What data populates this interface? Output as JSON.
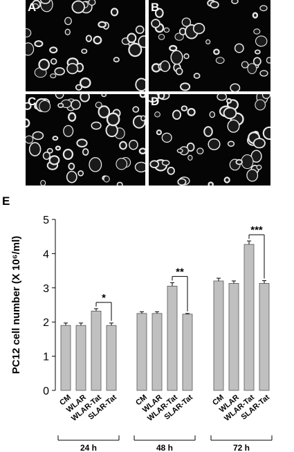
{
  "micrographs": [
    {
      "label": "A"
    },
    {
      "label": "B"
    },
    {
      "label": "C"
    },
    {
      "label": "D"
    }
  ],
  "chart_panel_label": "E",
  "chart_data": {
    "type": "bar",
    "title": "",
    "ylabel": "PC12 cell number (X 10⁶/ml)",
    "ylim": [
      0,
      5
    ],
    "yticks": [
      "0",
      "1",
      "2",
      "3",
      "4",
      "5"
    ],
    "grid": false,
    "bar_color": "#c0c0c0",
    "groups": [
      {
        "label": "24 h",
        "categories": [
          "CM",
          "WLAR",
          "WLAR-Tat",
          "SLAR-Tat"
        ],
        "values": [
          1.9,
          1.9,
          2.32,
          1.9
        ],
        "errors": [
          0.07,
          0.07,
          0.07,
          0.07
        ],
        "significance": {
          "between": [
            2,
            3
          ],
          "label": "*"
        }
      },
      {
        "label": "48 h",
        "categories": [
          "CM",
          "WLAR",
          "WLAR-Tat",
          "SLAR-Tat"
        ],
        "values": [
          2.25,
          2.25,
          3.05,
          2.23
        ],
        "errors": [
          0.05,
          0.05,
          0.1,
          0.02
        ],
        "significance": {
          "between": [
            2,
            3
          ],
          "label": "**"
        }
      },
      {
        "label": "72 h",
        "categories": [
          "CM",
          "WLAR",
          "WLAR-Tat",
          "SLAR-Tat"
        ],
        "values": [
          3.2,
          3.13,
          4.27,
          3.13
        ],
        "errors": [
          0.08,
          0.07,
          0.1,
          0.08
        ],
        "significance": {
          "between": [
            2,
            3
          ],
          "label": "***"
        }
      }
    ]
  }
}
